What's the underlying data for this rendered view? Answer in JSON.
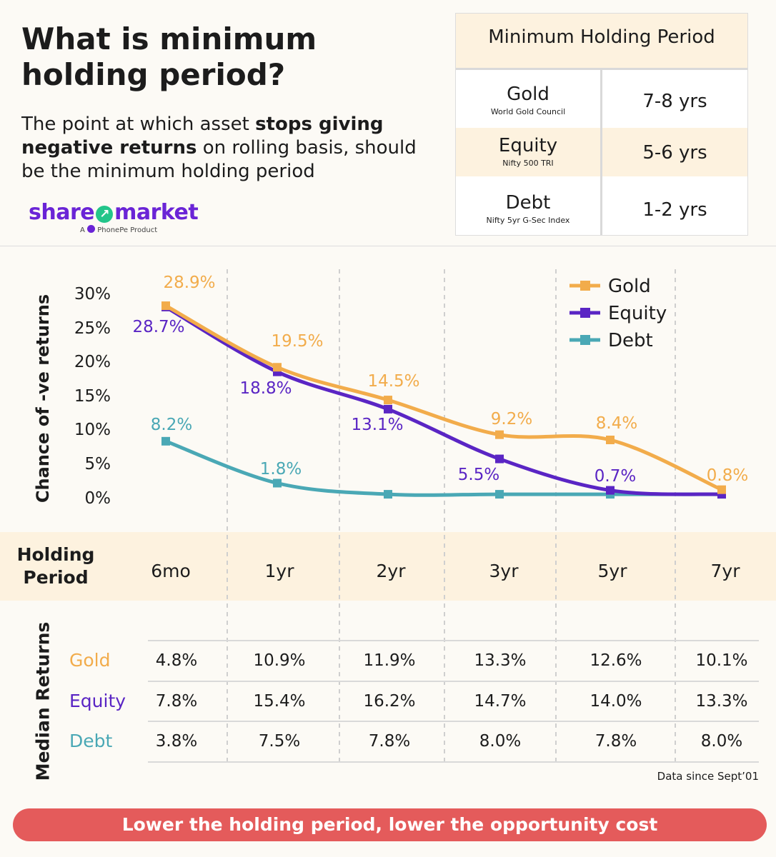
{
  "header": {
    "title": "What is minimum holding period?",
    "subtitle_pre": "The point at which asset ",
    "subtitle_bold": "stops giving negative returns",
    "subtitle_post": " on rolling basis, should be the minimum holding period"
  },
  "logo": {
    "brand_left": "share",
    "brand_right": "market",
    "tagline_a": "A",
    "tagline_b": "PhonePe Product"
  },
  "min_holding_table": {
    "title": "Minimum Holding Period",
    "rows": [
      {
        "asset": "Gold",
        "index": "World Gold Council",
        "period": "7-8 yrs"
      },
      {
        "asset": "Equity",
        "index": "Nifty 500 TRI",
        "period": "5-6 yrs"
      },
      {
        "asset": "Debt",
        "index": "Nifty 5yr G-Sec Index",
        "period": "1-2 yrs"
      }
    ]
  },
  "chart_data": {
    "type": "line",
    "ylabel": "Chance of -ve returns",
    "yticks": [
      "30%",
      "25%",
      "20%",
      "15%",
      "10%",
      "5%",
      "0%"
    ],
    "ylim": [
      0,
      30
    ],
    "categories": [
      "6mo",
      "1yr",
      "2yr",
      "3yr",
      "5yr",
      "7yr"
    ],
    "legend_position": "top-right",
    "series": [
      {
        "name": "Gold",
        "color": "#f2ac4b",
        "values": [
          28.9,
          19.5,
          14.5,
          9.2,
          8.4,
          0.8
        ],
        "labels": [
          "28.9%",
          "19.5%",
          "14.5%",
          "9.2%",
          "8.4%",
          "0.8%"
        ]
      },
      {
        "name": "Equity",
        "color": "#5a25c4",
        "values": [
          28.7,
          18.8,
          13.1,
          5.5,
          0.7,
          0.1
        ],
        "labels": [
          "28.7%",
          "18.8%",
          "13.1%",
          "5.5%",
          "0.7%",
          ""
        ]
      },
      {
        "name": "Debt",
        "color": "#4aa8b5",
        "values": [
          8.2,
          1.8,
          0.1,
          0.1,
          0.1,
          0.1
        ],
        "labels": [
          "8.2%",
          "1.8%",
          "",
          "",
          "",
          ""
        ]
      }
    ]
  },
  "holding": {
    "label": "Holding Period",
    "periods": [
      "6mo",
      "1yr",
      "2yr",
      "3yr",
      "5yr",
      "7yr"
    ]
  },
  "median": {
    "label": "Median Returns",
    "rows": [
      {
        "name": "Gold",
        "color": "#f2ac4b",
        "values": [
          "4.8%",
          "10.9%",
          "11.9%",
          "13.3%",
          "12.6%",
          "10.1%"
        ]
      },
      {
        "name": "Equity",
        "color": "#5a25c4",
        "values": [
          "7.8%",
          "15.4%",
          "16.2%",
          "14.7%",
          "14.0%",
          "13.3%"
        ]
      },
      {
        "name": "Debt",
        "color": "#4aa8b5",
        "values": [
          "3.8%",
          "7.5%",
          "7.8%",
          "8.0%",
          "7.8%",
          "8.0%"
        ]
      }
    ]
  },
  "note": "Data since Sept’01",
  "banner": "Lower the holding period, lower the opportunity cost"
}
